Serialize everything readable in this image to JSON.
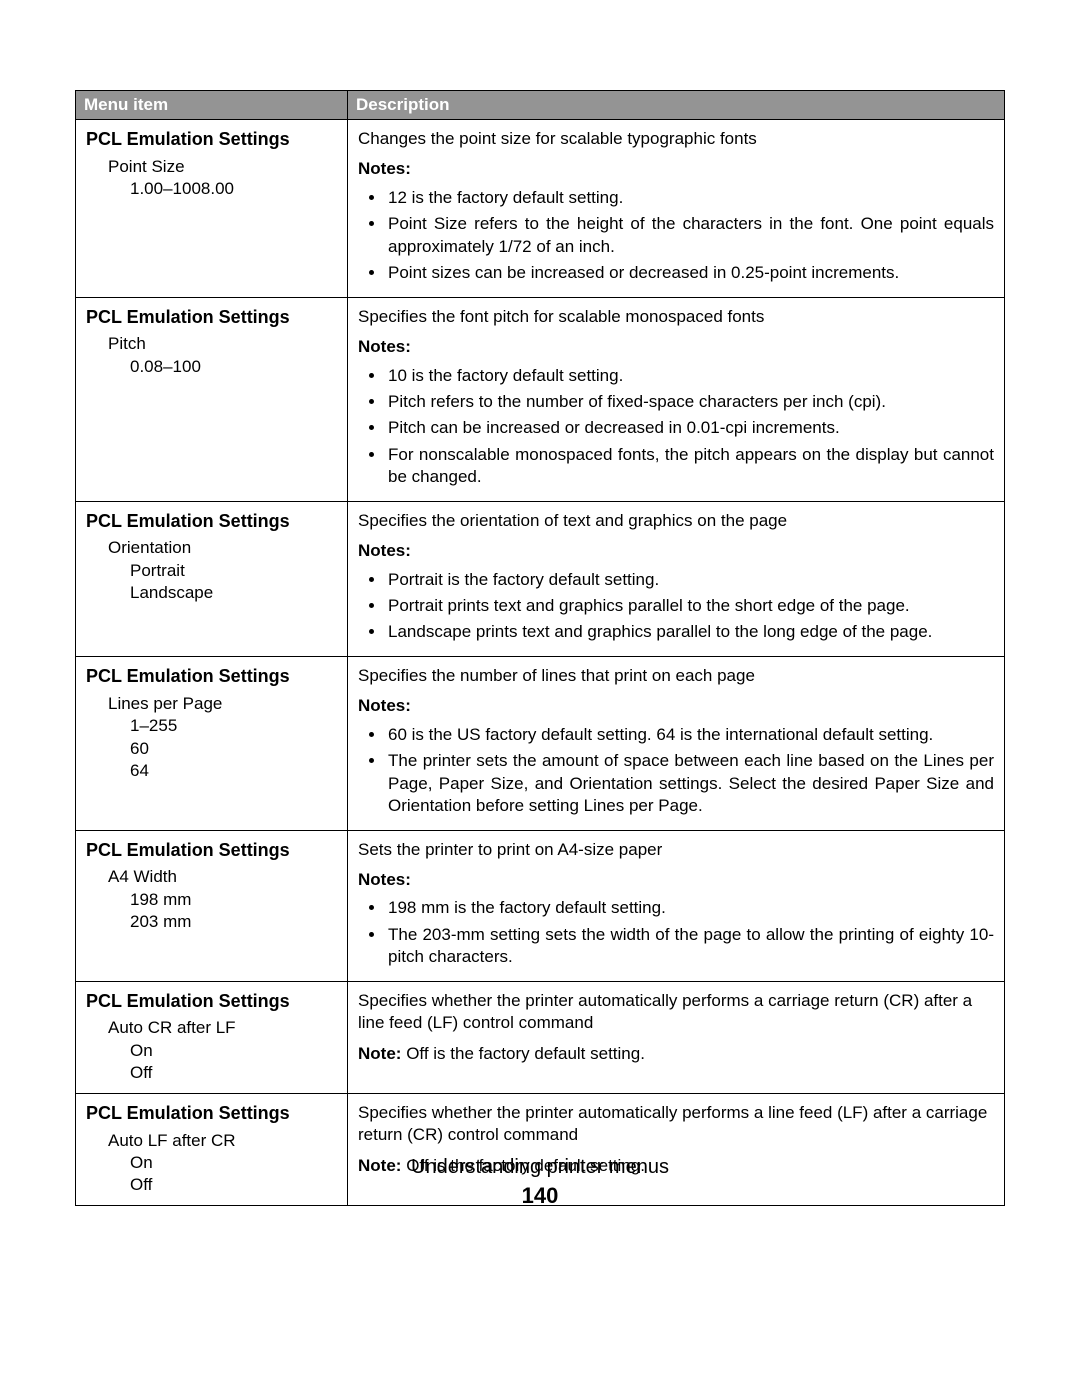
{
  "table": {
    "headers": {
      "menu": "Menu item",
      "desc": "Description"
    },
    "notes_label": "Notes:",
    "note_label": "Note:",
    "rows": [
      {
        "title": "PCL Emulation Settings",
        "sub1": "Point Size",
        "subs2": [
          "1.00–1008.00"
        ],
        "lead": "Changes the point size for scalable typographic fonts",
        "notes": [
          "12 is the factory default setting.",
          "Point Size refers to the height of the characters in the font. One point equals approximately 1/72 of an inch.",
          "Point sizes can be increased or decreased in 0.25-point increments."
        ]
      },
      {
        "title": "PCL Emulation Settings",
        "sub1": "Pitch",
        "subs2": [
          "0.08–100"
        ],
        "lead": "Specifies the font pitch for scalable monospaced fonts",
        "notes": [
          "10 is the factory default setting.",
          "Pitch refers to the number of fixed-space characters per inch (cpi).",
          "Pitch can be increased or decreased in 0.01-cpi increments.",
          "For nonscalable monospaced fonts, the pitch appears on the display but cannot be changed."
        ]
      },
      {
        "title": "PCL Emulation Settings",
        "sub1": "Orientation",
        "subs2": [
          "Portrait",
          "Landscape"
        ],
        "lead": "Specifies the orientation of text and graphics on the page",
        "notes": [
          "Portrait is the factory default setting.",
          "Portrait prints text and graphics parallel to the short edge of the page.",
          "Landscape prints text and graphics parallel to the long edge of the page."
        ]
      },
      {
        "title": "PCL Emulation Settings",
        "sub1": "Lines per Page",
        "subs2": [
          "1–255",
          "60",
          "64"
        ],
        "lead": "Specifies the number of lines that print on each page",
        "notes": [
          "60 is the US factory default setting. 64 is the international default setting.",
          "The printer sets the amount of space between each line based on the Lines per Page, Paper Size, and Orientation settings. Select the desired Paper Size and Orientation before setting Lines per Page."
        ]
      },
      {
        "title": "PCL Emulation Settings",
        "sub1": "A4 Width",
        "subs2": [
          "198 mm",
          "203 mm"
        ],
        "lead": "Sets the printer to print on A4-size paper",
        "notes": [
          "198 mm is the factory default setting.",
          "The 203-mm setting sets the width of the page to allow the printing of eighty 10-pitch characters."
        ]
      },
      {
        "title": "PCL Emulation Settings",
        "sub1": "Auto CR after LF",
        "subs2": [
          "On",
          "Off"
        ],
        "lead": "Specifies whether the printer automatically performs a carriage return (CR) after a line feed (LF) control command",
        "single_note": "Off is the factory default setting."
      },
      {
        "title": "PCL Emulation Settings",
        "sub1": "Auto LF after CR",
        "subs2": [
          "On",
          "Off"
        ],
        "lead": "Specifies whether the printer automatically performs a line feed (LF) after a carriage return (CR) control command",
        "single_note": "Off is the factory default setting."
      }
    ]
  },
  "footer": {
    "title": "Understanding printer menus",
    "page": "140"
  },
  "colors": {
    "header_bg": "#949494",
    "header_fg": "#ffffff",
    "border": "#000000",
    "page_bg": "#ffffff",
    "text": "#000000"
  }
}
